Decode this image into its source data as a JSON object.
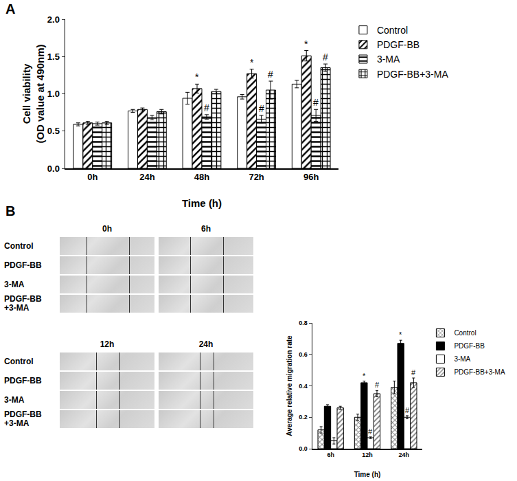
{
  "chart_data": [
    {
      "type": "bar",
      "categories": [
        "0h",
        "24h",
        "48h",
        "72h",
        "96h"
      ],
      "x_label": "Time (h)",
      "y_label": "Cell viability\n(OD value at 490nm)",
      "ylim": [
        0,
        2.0
      ],
      "yticks": [
        {
          "value": 0,
          "label": "0.0"
        },
        0.5,
        {
          "value": 1,
          "label": "1.0"
        },
        1.5,
        {
          "value": 2,
          "label": "2.0"
        }
      ],
      "grid": false,
      "legend": "right",
      "series": [
        {
          "name": "Control",
          "color": "#ffffff",
          "marker": "plain",
          "values": [
            0.59,
            0.77,
            0.94,
            0.96,
            1.13
          ],
          "errors": [
            0.02,
            0.02,
            0.08,
            0.03,
            0.05
          ]
        },
        {
          "name": "PDGF-BB",
          "color": "#000000",
          "marker": "diagonal",
          "values": [
            0.61,
            0.79,
            1.07,
            1.27,
            1.51
          ],
          "errors": [
            0.02,
            0.02,
            0.06,
            0.06,
            0.07
          ]
        },
        {
          "name": "3-MA",
          "color": "#000000",
          "marker": "horizontal",
          "values": [
            0.6,
            0.68,
            0.69,
            0.66,
            0.71
          ],
          "errors": [
            0.02,
            0.03,
            0.03,
            0.05,
            0.08
          ]
        },
        {
          "name": "PDGF-BB+3-MA",
          "color": "#000000",
          "marker": "checker",
          "values": [
            0.61,
            0.76,
            1.03,
            1.05,
            1.35
          ],
          "errors": [
            0.02,
            0.03,
            0.03,
            0.12,
            0.05
          ]
        }
      ],
      "significance": [
        {
          "series": "PDGF-BB",
          "category": "48h",
          "text": "*"
        },
        {
          "series": "3-MA",
          "category": "48h",
          "text": "#"
        },
        {
          "series": "PDGF-BB",
          "category": "72h",
          "text": "*"
        },
        {
          "series": "3-MA",
          "category": "72h",
          "text": "#"
        },
        {
          "series": "PDGF-BB+3-MA",
          "category": "72h",
          "text": "#"
        },
        {
          "series": "PDGF-BB",
          "category": "96h",
          "text": "*"
        },
        {
          "series": "3-MA",
          "category": "96h",
          "text": "#"
        },
        {
          "series": "PDGF-BB+3-MA",
          "category": "96h",
          "text": "#"
        }
      ]
    },
    {
      "type": "bar",
      "categories": [
        "6h",
        "12h",
        "24h"
      ],
      "x_label": "Time (h)",
      "y_label": "Average relative migration rate",
      "ylim": [
        0,
        0.8
      ],
      "yticks": [
        {
          "value": 0,
          "label": "0.0"
        },
        0.2,
        0.4,
        0.6,
        0.8
      ],
      "grid": false,
      "legend": "right",
      "series": [
        {
          "name": "Control",
          "color": "#7f7f7f",
          "marker": "crosshatch",
          "values": [
            0.12,
            0.2,
            0.39
          ],
          "errors": [
            0.02,
            0.02,
            0.04
          ]
        },
        {
          "name": "PDGF-BB",
          "color": "#000000",
          "marker": "plain",
          "values": [
            0.27,
            0.42,
            0.67
          ],
          "errors": [
            0.01,
            0.01,
            0.02
          ]
        },
        {
          "name": "3-MA",
          "color": "#ffffff",
          "marker": "plain",
          "values": [
            0.05,
            0.07,
            0.2
          ],
          "errors": [
            0.02,
            0.005,
            0.01
          ]
        },
        {
          "name": "PDGF-BB+3-MA",
          "color": "#7f7f7f",
          "marker": "diagonal",
          "values": [
            0.26,
            0.35,
            0.42
          ],
          "errors": [
            0.01,
            0.02,
            0.03
          ]
        }
      ],
      "significance": [
        {
          "series": "PDGF-BB",
          "category": "12h",
          "text": "*"
        },
        {
          "series": "3-MA",
          "category": "12h",
          "text": "#"
        },
        {
          "series": "PDGF-BB+3-MA",
          "category": "12h",
          "text": "#"
        },
        {
          "series": "PDGF-BB",
          "category": "24h",
          "text": "*"
        },
        {
          "series": "3-MA",
          "category": "24h",
          "text": "#"
        },
        {
          "series": "PDGF-BB+3-MA",
          "category": "24h",
          "text": "#"
        }
      ]
    }
  ],
  "figure": {
    "panel_labels": [
      "A",
      "B"
    ],
    "scratch_images": {
      "blocks": [
        {
          "times": [
            "0h",
            "6h"
          ]
        },
        {
          "times": [
            "12h",
            "24h"
          ]
        }
      ],
      "rows": [
        "Control",
        "PDGF-BB",
        "3-MA",
        "PDGF-BB\n+3-MA"
      ]
    }
  }
}
